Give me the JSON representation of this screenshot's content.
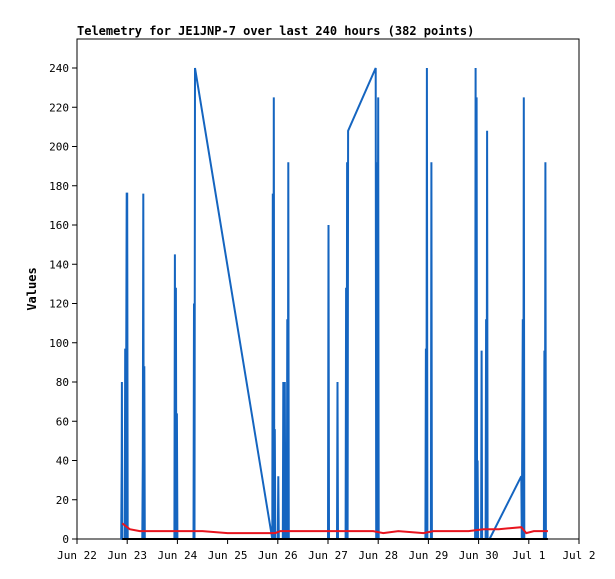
{
  "chart_data": {
    "type": "line",
    "title": "Telemetry for JE1JNP-7 over last 240 hours (382 points)",
    "xlabel": "",
    "ylabel": "Values",
    "xlim": [
      "Jun 22",
      "Jul 2"
    ],
    "ylim": [
      0,
      255
    ],
    "xticks": [
      "Jun 22",
      "Jun 23",
      "Jun 24",
      "Jun 25",
      "Jun 26",
      "Jun 27",
      "Jun 28",
      "Jun 29",
      "Jun 30",
      "Jul 1",
      "Jul 2"
    ],
    "yticks": [
      0,
      20,
      40,
      60,
      80,
      100,
      120,
      140,
      160,
      180,
      200,
      220,
      240
    ],
    "grid": false,
    "legend": "none",
    "colors": {
      "blue": "#1565c0",
      "red": "#e8141e",
      "black": "#000000"
    },
    "series": [
      {
        "color": "#1565c0",
        "x": [
          22.9,
          22.91,
          22.92,
          22.93,
          22.94,
          22.95,
          22.96,
          22.97,
          22.98,
          22.99,
          23.0,
          23.01,
          23.02,
          23.03,
          23.04,
          23.05,
          23.06,
          23.07,
          23.08,
          23.09,
          23.1,
          23.11,
          23.12,
          23.13,
          23.14,
          23.15,
          23.16,
          23.17,
          23.18,
          23.19,
          23.2,
          23.21,
          23.22,
          23.23,
          23.24,
          23.25,
          23.26,
          23.27,
          23.28,
          23.29,
          23.3,
          23.31,
          23.32,
          23.33,
          23.34,
          23.35,
          23.36,
          23.37,
          23.38,
          23.39,
          23.4,
          23.41,
          23.42,
          23.43,
          23.44,
          23.45,
          23.46,
          23.47,
          23.48,
          23.49,
          23.5,
          23.51,
          23.52,
          23.53,
          23.54,
          23.55,
          23.56,
          23.57,
          23.58,
          23.59,
          23.6,
          23.61,
          23.62,
          23.63,
          23.64,
          23.65,
          23.66,
          23.67,
          23.68,
          23.69,
          23.7,
          23.71,
          23.72,
          23.73,
          23.74,
          23.75,
          23.76,
          23.77,
          23.78,
          23.79,
          23.8,
          23.81,
          23.82,
          23.83,
          23.84,
          23.85,
          23.86,
          23.87,
          23.88,
          23.89,
          23.9,
          23.91,
          23.92,
          23.93,
          23.94,
          23.95,
          23.96,
          23.97,
          23.98,
          23.99,
          24.0,
          24.01,
          24.02,
          24.03,
          24.04,
          24.05,
          24.06,
          24.07,
          24.08,
          24.09,
          24.1,
          24.11,
          24.12,
          24.13,
          24.14,
          24.15,
          24.16,
          24.17,
          24.18,
          24.19,
          24.2,
          24.21,
          24.22,
          24.23,
          24.24,
          24.25,
          24.26,
          24.27,
          24.28,
          24.29,
          24.3,
          24.31,
          24.32,
          24.33,
          24.34,
          24.35,
          24.36,
          24.37,
          24.38,
          24.39,
          24.4,
          25.9,
          25.91,
          25.92,
          25.93,
          25.94,
          25.95,
          25.96,
          25.97,
          25.98,
          25.99,
          26.0,
          26.01,
          26.02,
          26.03,
          26.04,
          26.05,
          26.06,
          26.07,
          26.08,
          26.09,
          26.1,
          26.11,
          26.12,
          26.13,
          26.14,
          26.15,
          26.16,
          26.17,
          26.18,
          26.19,
          26.2,
          26.21,
          26.22,
          26.23,
          26.24,
          26.25,
          26.26,
          26.27,
          26.28,
          26.29,
          26.3,
          26.31,
          26.32,
          26.33,
          26.34,
          26.35,
          26.36,
          26.37,
          26.38,
          26.39,
          26.4,
          26.41,
          26.42,
          26.43,
          26.44,
          26.45,
          26.46,
          26.47,
          26.48,
          26.49,
          26.5,
          26.51,
          26.52,
          26.53,
          26.54,
          26.55,
          26.56,
          26.57,
          26.58,
          26.59,
          26.6,
          26.61,
          26.62,
          26.63,
          26.64,
          26.65,
          26.66,
          26.67,
          26.68,
          26.69,
          26.7,
          26.71,
          26.72,
          26.73,
          26.74,
          26.75,
          26.76,
          26.77,
          26.78,
          26.79,
          26.8,
          26.81,
          26.82,
          26.83,
          26.84,
          26.85,
          26.86,
          26.87,
          26.88,
          26.89,
          26.9,
          26.91,
          26.92,
          26.93,
          26.94,
          26.95,
          26.96,
          26.97,
          26.98,
          26.99,
          27.0,
          27.01,
          27.02,
          27.03,
          27.04,
          27.05,
          27.06,
          27.07,
          27.08,
          27.09,
          27.1,
          27.11,
          27.12,
          27.13,
          27.14,
          27.15,
          27.16,
          27.17,
          27.18,
          27.19,
          27.2,
          27.21,
          27.22,
          27.23,
          27.24,
          27.25,
          27.26,
          27.27,
          27.28,
          27.29,
          27.3,
          27.31,
          27.32,
          27.33,
          27.34,
          27.35,
          27.36,
          27.37,
          27.38,
          27.39,
          27.4,
          27.9,
          27.91,
          27.92,
          27.93,
          27.94,
          27.95,
          27.96,
          27.97,
          27.98,
          27.99,
          28.0,
          28.01,
          28.02,
          28.03,
          28.04,
          28.05,
          28.06,
          28.07,
          28.08,
          28.09,
          28.1,
          28.11,
          28.12,
          28.13,
          28.14,
          28.15,
          28.16,
          28.17,
          28.18,
          28.19,
          28.2,
          28.21,
          28.22,
          28.23,
          28.24,
          28.25,
          28.26,
          28.27,
          28.28,
          28.29,
          28.3,
          28.31,
          28.32,
          28.33,
          28.34,
          28.35,
          28.36,
          28.37,
          28.38,
          28.39,
          28.4,
          28.41,
          28.42,
          28.43,
          28.44,
          28.45,
          28.46,
          28.47,
          28.48,
          28.49,
          28.5,
          28.51,
          28.52,
          28.53,
          28.54,
          28.55,
          28.56,
          28.57,
          28.58,
          28.59,
          28.6,
          28.61,
          28.62,
          28.63,
          28.64,
          28.65,
          28.66,
          28.67,
          28.68,
          28.69,
          28.7,
          28.71,
          28.72,
          28.73,
          28.74,
          28.75,
          28.76,
          28.77,
          28.78,
          28.79,
          28.8,
          28.81,
          28.82,
          28.83,
          28.84,
          28.85,
          28.86,
          28.87,
          28.88,
          28.89,
          28.9,
          28.91,
          28.92,
          28.93,
          28.94,
          28.95,
          28.96,
          28.97,
          28.98,
          28.99,
          29.0,
          29.01,
          29.02,
          29.03,
          29.04,
          29.05,
          29.06,
          29.07,
          29.08,
          29.09,
          29.1,
          29.11,
          29.12,
          29.13,
          29.14,
          29.15,
          29.16,
          29.17,
          29.18,
          29.19,
          29.2,
          29.21,
          29.22,
          29.23,
          29.24,
          29.25,
          29.26,
          29.27,
          29.28,
          29.29,
          29.3,
          29.31,
          29.32,
          29.33,
          29.34,
          29.35,
          29.36,
          29.37,
          29.38,
          29.39,
          29.4,
          29.41,
          29.42,
          29.43,
          29.44,
          29.45,
          29.46,
          29.47,
          29.48,
          29.49,
          29.5,
          29.51,
          29.52,
          29.53,
          29.54,
          29.55,
          29.56,
          29.57,
          29.58,
          29.59,
          29.6,
          29.61,
          29.62,
          29.63,
          29.64,
          29.65,
          29.66,
          29.67,
          29.68,
          29.69,
          29.7,
          29.71,
          29.72,
          29.73,
          29.74,
          29.75,
          29.76,
          29.77,
          29.78,
          29.79,
          29.8,
          29.81,
          29.82,
          29.83,
          29.84,
          29.85,
          29.86,
          29.87,
          29.88,
          29.89,
          29.9,
          29.91,
          29.92,
          29.93,
          29.94,
          29.95,
          29.96,
          29.97,
          29.98,
          29.99,
          30.0,
          30.01,
          30.02,
          30.03,
          30.04,
          30.05,
          30.06,
          30.07,
          30.08,
          30.09,
          30.1,
          30.11,
          30.12,
          30.13,
          30.14,
          30.15,
          30.16,
          30.17,
          30.18,
          30.19,
          30.2,
          30.21,
          30.22,
          30.23,
          30.24,
          30.25,
          30.26,
          30.27,
          30.28,
          30.29,
          30.3,
          30.9,
          30.91,
          30.92,
          30.93,
          30.94,
          30.95,
          30.96,
          30.97,
          30.98,
          30.99,
          31.0,
          31.01,
          31.02,
          31.03,
          31.04,
          31.05,
          31.06,
          31.07,
          31.08,
          31.09,
          31.1,
          31.11,
          31.12,
          31.13,
          31.14,
          31.15,
          31.16,
          31.17,
          31.18,
          31.19,
          31.2,
          31.21,
          31.22,
          31.23,
          31.24,
          31.25,
          31.26,
          31.27,
          31.28,
          31.29,
          31.3,
          31.31,
          31.32,
          31.33,
          31.34,
          31.35,
          31.36,
          31.37,
          31.38,
          31.39,
          31.4
        ],
        "points": [
          [
            22.88,
            0
          ],
          [
            22.89,
            40
          ],
          [
            22.895,
            80
          ],
          [
            22.9,
            0
          ],
          [
            22.95,
            0
          ],
          [
            22.96,
            97
          ],
          [
            22.97,
            0
          ],
          [
            22.99,
            176
          ],
          [
            23.0,
            176
          ],
          [
            23.01,
            0
          ],
          [
            23.3,
            0
          ],
          [
            23.31,
            40
          ],
          [
            23.32,
            176
          ],
          [
            23.33,
            0
          ],
          [
            23.34,
            88
          ],
          [
            23.35,
            0
          ],
          [
            23.94,
            0
          ],
          [
            23.95,
            145
          ],
          [
            23.96,
            0
          ],
          [
            23.97,
            128
          ],
          [
            23.98,
            0
          ],
          [
            23.99,
            64
          ],
          [
            24.0,
            0
          ],
          [
            24.32,
            0
          ],
          [
            24.33,
            120
          ],
          [
            24.34,
            0
          ],
          [
            24.35,
            240
          ],
          [
            25.89,
            0
          ],
          [
            25.9,
            176
          ],
          [
            25.91,
            0
          ],
          [
            25.92,
            225
          ],
          [
            25.93,
            0
          ],
          [
            25.94,
            56
          ],
          [
            25.95,
            0
          ],
          [
            26.0,
            0
          ],
          [
            26.01,
            32
          ],
          [
            26.02,
            0
          ],
          [
            26.1,
            0
          ],
          [
            26.11,
            80
          ],
          [
            26.12,
            0
          ],
          [
            26.14,
            80
          ],
          [
            26.15,
            0
          ],
          [
            26.18,
            0
          ],
          [
            26.19,
            112
          ],
          [
            26.2,
            0
          ],
          [
            26.21,
            192
          ],
          [
            26.22,
            0
          ],
          [
            27.0,
            0
          ],
          [
            27.01,
            160
          ],
          [
            27.02,
            0
          ],
          [
            27.18,
            0
          ],
          [
            27.19,
            80
          ],
          [
            27.2,
            0
          ],
          [
            27.35,
            0
          ],
          [
            27.36,
            128
          ],
          [
            27.37,
            0
          ],
          [
            27.38,
            192
          ],
          [
            27.39,
            0
          ],
          [
            27.4,
            208
          ],
          [
            27.95,
            240
          ],
          [
            27.96,
            0
          ],
          [
            27.97,
            192
          ],
          [
            27.98,
            0
          ],
          [
            28.0,
            225
          ],
          [
            28.01,
            0
          ],
          [
            28.94,
            0
          ],
          [
            28.95,
            97
          ],
          [
            28.96,
            0
          ],
          [
            28.97,
            240
          ],
          [
            28.98,
            0
          ],
          [
            29.05,
            0
          ],
          [
            29.06,
            192
          ],
          [
            29.07,
            0
          ],
          [
            29.93,
            0
          ],
          [
            29.94,
            240
          ],
          [
            29.95,
            0
          ],
          [
            29.96,
            225
          ],
          [
            29.97,
            0
          ],
          [
            29.98,
            40
          ],
          [
            29.99,
            0
          ],
          [
            30.05,
            0
          ],
          [
            30.06,
            96
          ],
          [
            30.07,
            0
          ],
          [
            30.14,
            0
          ],
          [
            30.15,
            112
          ],
          [
            30.16,
            0
          ],
          [
            30.17,
            208
          ],
          [
            30.18,
            0
          ],
          [
            30.22,
            0
          ],
          [
            30.85,
            32
          ],
          [
            30.86,
            0
          ],
          [
            30.88,
            112
          ],
          [
            30.89,
            0
          ],
          [
            30.9,
            225
          ],
          [
            30.91,
            0
          ],
          [
            31.3,
            0
          ],
          [
            31.31,
            96
          ],
          [
            31.32,
            0
          ],
          [
            31.33,
            192
          ],
          [
            31.34,
            0
          ]
        ]
      },
      {
        "color": "#e8141e",
        "points": [
          [
            22.9,
            8
          ],
          [
            23.05,
            5
          ],
          [
            23.25,
            4
          ],
          [
            23.9,
            4
          ],
          [
            24.2,
            4
          ],
          [
            24.5,
            4
          ],
          [
            25.0,
            3
          ],
          [
            25.5,
            3
          ],
          [
            25.95,
            3
          ],
          [
            26.05,
            4
          ],
          [
            26.8,
            4
          ],
          [
            27.4,
            4
          ],
          [
            27.9,
            4
          ],
          [
            28.1,
            3
          ],
          [
            28.4,
            4
          ],
          [
            28.9,
            3
          ],
          [
            29.1,
            4
          ],
          [
            29.8,
            4
          ],
          [
            30.1,
            5
          ],
          [
            30.4,
            5
          ],
          [
            30.85,
            6
          ],
          [
            30.95,
            3
          ],
          [
            31.1,
            4
          ],
          [
            31.38,
            4
          ]
        ]
      },
      {
        "color": "#000000",
        "points": [
          [
            22.9,
            0
          ],
          [
            31.38,
            0
          ]
        ]
      }
    ]
  }
}
